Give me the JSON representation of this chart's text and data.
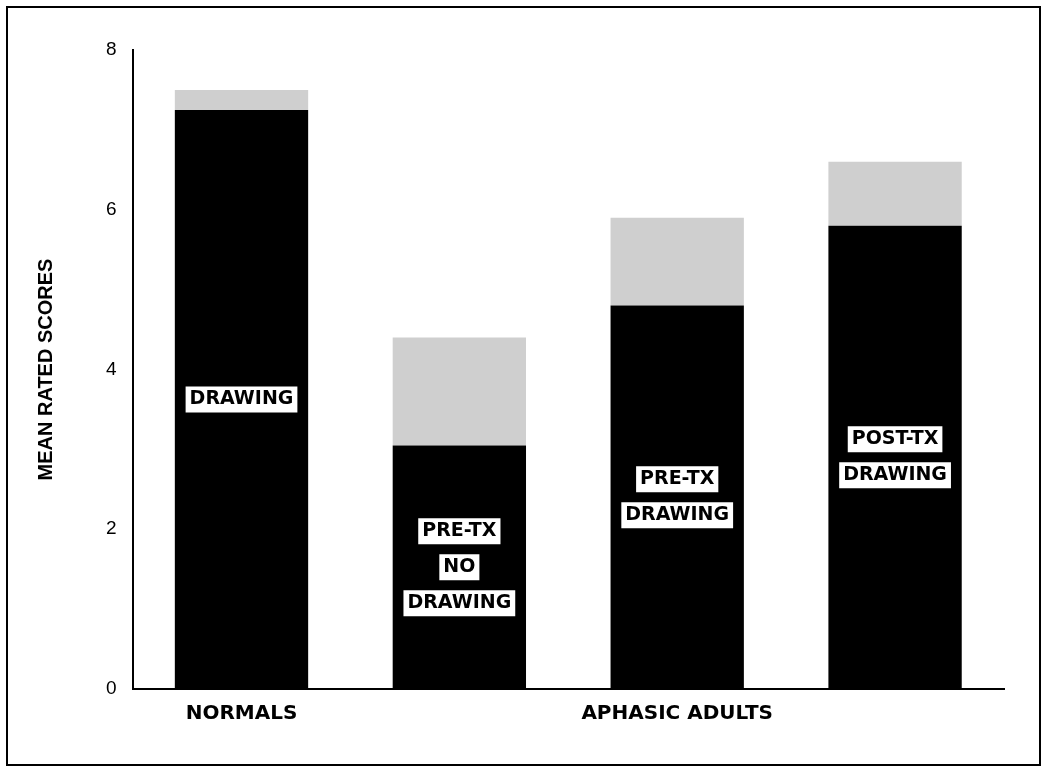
{
  "chart_data": {
    "type": "bar",
    "ylabel": "MEAN RATED SCORES",
    "categories": [
      "DRAWING",
      "PRE-TX NO DRAWING",
      "PRE-TX DRAWING",
      "POST-TX DRAWING"
    ],
    "series": [
      {
        "color": "#000000",
        "values": [
          7.25,
          3.05,
          4.8,
          5.8
        ]
      },
      {
        "color": "#cfcfcf",
        "values": [
          0.25,
          1.35,
          1.1,
          0.8
        ]
      }
    ],
    "stacked": true,
    "ylim": [
      0,
      8
    ],
    "yticks": [
      0,
      2,
      4,
      6,
      8
    ],
    "grid": false,
    "legend": false,
    "tick_labels": "y",
    "annotations": [
      "NORMALS",
      "APHASIC ADULTS"
    ]
  }
}
